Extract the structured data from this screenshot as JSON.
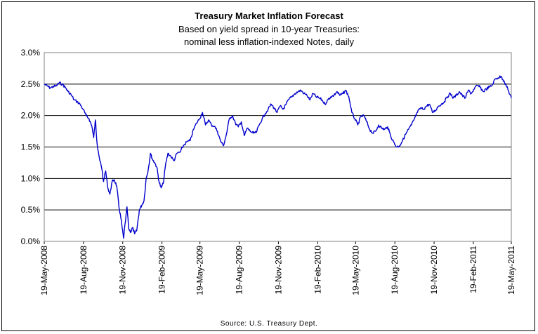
{
  "chart_data": {
    "type": "line",
    "title": "Treasury Market Inflation Forecast",
    "subtitle_lines": [
      "Based on yield spread in 10-year Treasuries:",
      "nominal less inflation-indexed Notes, daily"
    ],
    "source": "Source: U.S. Treasury Dept.",
    "xlabel": "",
    "ylabel": "",
    "ylim": [
      0,
      3.0
    ],
    "y_ticks": [
      {
        "value": 0.0,
        "label": "0.0%"
      },
      {
        "value": 0.5,
        "label": "0.5%"
      },
      {
        "value": 1.0,
        "label": "1.0%"
      },
      {
        "value": 1.5,
        "label": "1.5%"
      },
      {
        "value": 2.0,
        "label": "2.0%"
      },
      {
        "value": 2.5,
        "label": "2.5%"
      },
      {
        "value": 3.0,
        "label": "3.0%"
      }
    ],
    "x_ticks": [
      "19-May-2008",
      "19-Aug-2008",
      "19-Nov-2008",
      "19-Feb-2009",
      "19-May-2009",
      "19-Aug-2009",
      "19-Nov-2009",
      "19-Feb-2010",
      "19-May-2010",
      "19-Aug-2010",
      "19-Nov-2010",
      "19-Feb-2011",
      "19-May-2011"
    ],
    "grid": "horizontal",
    "line_color": "#0000cc",
    "series": [
      {
        "points": [
          [
            "2008-05-19",
            2.5
          ],
          [
            "2008-05-26",
            2.47
          ],
          [
            "2008-06-02",
            2.44
          ],
          [
            "2008-06-09",
            2.46
          ],
          [
            "2008-06-16",
            2.47
          ],
          [
            "2008-06-23",
            2.52
          ],
          [
            "2008-06-30",
            2.5
          ],
          [
            "2008-07-07",
            2.45
          ],
          [
            "2008-07-14",
            2.38
          ],
          [
            "2008-07-21",
            2.33
          ],
          [
            "2008-07-28",
            2.25
          ],
          [
            "2008-08-04",
            2.22
          ],
          [
            "2008-08-11",
            2.18
          ],
          [
            "2008-08-18",
            2.1
          ],
          [
            "2008-08-25",
            2.0
          ],
          [
            "2008-09-01",
            1.95
          ],
          [
            "2008-09-08",
            1.82
          ],
          [
            "2008-09-12",
            1.65
          ],
          [
            "2008-09-16",
            1.93
          ],
          [
            "2008-09-20",
            1.55
          ],
          [
            "2008-09-26",
            1.3
          ],
          [
            "2008-10-01",
            1.15
          ],
          [
            "2008-10-05",
            0.95
          ],
          [
            "2008-10-10",
            1.12
          ],
          [
            "2008-10-15",
            0.85
          ],
          [
            "2008-10-20",
            0.75
          ],
          [
            "2008-10-25",
            0.95
          ],
          [
            "2008-10-30",
            0.98
          ],
          [
            "2008-11-05",
            0.88
          ],
          [
            "2008-11-10",
            0.55
          ],
          [
            "2008-11-14",
            0.4
          ],
          [
            "2008-11-18",
            0.2
          ],
          [
            "2008-11-21",
            0.05
          ],
          [
            "2008-11-25",
            0.3
          ],
          [
            "2008-11-29",
            0.55
          ],
          [
            "2008-12-03",
            0.2
          ],
          [
            "2008-12-08",
            0.15
          ],
          [
            "2008-12-12",
            0.22
          ],
          [
            "2008-12-17",
            0.12
          ],
          [
            "2008-12-22",
            0.18
          ],
          [
            "2008-12-28",
            0.5
          ],
          [
            "2009-01-03",
            0.58
          ],
          [
            "2009-01-08",
            0.65
          ],
          [
            "2009-01-13",
            1.0
          ],
          [
            "2009-01-18",
            1.15
          ],
          [
            "2009-01-23",
            1.4
          ],
          [
            "2009-01-28",
            1.3
          ],
          [
            "2009-02-02",
            1.25
          ],
          [
            "2009-02-07",
            1.18
          ],
          [
            "2009-02-12",
            0.95
          ],
          [
            "2009-02-17",
            0.85
          ],
          [
            "2009-02-22",
            0.92
          ],
          [
            "2009-02-27",
            1.2
          ],
          [
            "2009-03-05",
            1.4
          ],
          [
            "2009-03-12",
            1.35
          ],
          [
            "2009-03-19",
            1.28
          ],
          [
            "2009-03-26",
            1.4
          ],
          [
            "2009-04-03",
            1.42
          ],
          [
            "2009-04-10",
            1.52
          ],
          [
            "2009-04-18",
            1.58
          ],
          [
            "2009-04-26",
            1.6
          ],
          [
            "2009-05-04",
            1.78
          ],
          [
            "2009-05-11",
            1.88
          ],
          [
            "2009-05-18",
            1.95
          ],
          [
            "2009-05-25",
            2.05
          ],
          [
            "2009-06-01",
            1.85
          ],
          [
            "2009-06-08",
            1.93
          ],
          [
            "2009-06-15",
            1.85
          ],
          [
            "2009-06-22",
            1.83
          ],
          [
            "2009-06-29",
            1.75
          ],
          [
            "2009-07-06",
            1.6
          ],
          [
            "2009-07-13",
            1.52
          ],
          [
            "2009-07-20",
            1.7
          ],
          [
            "2009-07-27",
            1.95
          ],
          [
            "2009-08-03",
            2.0
          ],
          [
            "2009-08-10",
            1.88
          ],
          [
            "2009-08-17",
            1.82
          ],
          [
            "2009-08-24",
            1.9
          ],
          [
            "2009-08-31",
            1.68
          ],
          [
            "2009-09-07",
            1.8
          ],
          [
            "2009-09-14",
            1.75
          ],
          [
            "2009-09-21",
            1.72
          ],
          [
            "2009-09-28",
            1.73
          ],
          [
            "2009-10-05",
            1.85
          ],
          [
            "2009-10-12",
            1.95
          ],
          [
            "2009-10-19",
            2.03
          ],
          [
            "2009-10-26",
            2.1
          ],
          [
            "2009-11-02",
            2.18
          ],
          [
            "2009-11-09",
            2.12
          ],
          [
            "2009-11-16",
            2.05
          ],
          [
            "2009-11-23",
            2.15
          ],
          [
            "2009-11-30",
            2.1
          ],
          [
            "2009-12-07",
            2.18
          ],
          [
            "2009-12-14",
            2.26
          ],
          [
            "2009-12-21",
            2.3
          ],
          [
            "2009-12-28",
            2.35
          ],
          [
            "2010-01-04",
            2.38
          ],
          [
            "2010-01-11",
            2.4
          ],
          [
            "2010-01-18",
            2.35
          ],
          [
            "2010-01-25",
            2.32
          ],
          [
            "2010-02-01",
            2.25
          ],
          [
            "2010-02-08",
            2.35
          ],
          [
            "2010-02-15",
            2.3
          ],
          [
            "2010-02-22",
            2.28
          ],
          [
            "2010-03-01",
            2.25
          ],
          [
            "2010-03-08",
            2.18
          ],
          [
            "2010-03-15",
            2.25
          ],
          [
            "2010-03-22",
            2.3
          ],
          [
            "2010-03-29",
            2.32
          ],
          [
            "2010-04-05",
            2.38
          ],
          [
            "2010-04-12",
            2.32
          ],
          [
            "2010-04-19",
            2.35
          ],
          [
            "2010-04-26",
            2.4
          ],
          [
            "2010-05-03",
            2.3
          ],
          [
            "2010-05-10",
            2.05
          ],
          [
            "2010-05-17",
            1.95
          ],
          [
            "2010-05-24",
            1.85
          ],
          [
            "2010-05-31",
            1.98
          ],
          [
            "2010-06-07",
            2.0
          ],
          [
            "2010-06-14",
            1.9
          ],
          [
            "2010-06-21",
            1.78
          ],
          [
            "2010-06-28",
            1.72
          ],
          [
            "2010-07-05",
            1.75
          ],
          [
            "2010-07-12",
            1.85
          ],
          [
            "2010-07-19",
            1.8
          ],
          [
            "2010-07-26",
            1.78
          ],
          [
            "2010-08-02",
            1.82
          ],
          [
            "2010-08-09",
            1.68
          ],
          [
            "2010-08-16",
            1.58
          ],
          [
            "2010-08-23",
            1.5
          ],
          [
            "2010-08-30",
            1.52
          ],
          [
            "2010-09-06",
            1.6
          ],
          [
            "2010-09-13",
            1.7
          ],
          [
            "2010-09-20",
            1.78
          ],
          [
            "2010-09-27",
            1.85
          ],
          [
            "2010-10-04",
            1.95
          ],
          [
            "2010-10-11",
            2.05
          ],
          [
            "2010-10-18",
            2.12
          ],
          [
            "2010-10-25",
            2.1
          ],
          [
            "2010-11-01",
            2.15
          ],
          [
            "2010-11-08",
            2.18
          ],
          [
            "2010-11-15",
            2.05
          ],
          [
            "2010-11-22",
            2.08
          ],
          [
            "2010-11-29",
            2.15
          ],
          [
            "2010-12-06",
            2.18
          ],
          [
            "2010-12-13",
            2.22
          ],
          [
            "2010-12-20",
            2.3
          ],
          [
            "2010-12-27",
            2.35
          ],
          [
            "2011-01-03",
            2.28
          ],
          [
            "2011-01-10",
            2.32
          ],
          [
            "2011-01-17",
            2.38
          ],
          [
            "2011-01-24",
            2.32
          ],
          [
            "2011-01-31",
            2.28
          ],
          [
            "2011-02-07",
            2.4
          ],
          [
            "2011-02-14",
            2.35
          ],
          [
            "2011-02-21",
            2.42
          ],
          [
            "2011-02-28",
            2.48
          ],
          [
            "2011-03-07",
            2.45
          ],
          [
            "2011-03-14",
            2.38
          ],
          [
            "2011-03-21",
            2.42
          ],
          [
            "2011-03-28",
            2.45
          ],
          [
            "2011-04-04",
            2.48
          ],
          [
            "2011-04-11",
            2.58
          ],
          [
            "2011-04-18",
            2.6
          ],
          [
            "2011-04-25",
            2.62
          ],
          [
            "2011-05-02",
            2.55
          ],
          [
            "2011-05-09",
            2.45
          ],
          [
            "2011-05-13",
            2.38
          ],
          [
            "2011-05-19",
            2.28
          ]
        ]
      }
    ]
  }
}
